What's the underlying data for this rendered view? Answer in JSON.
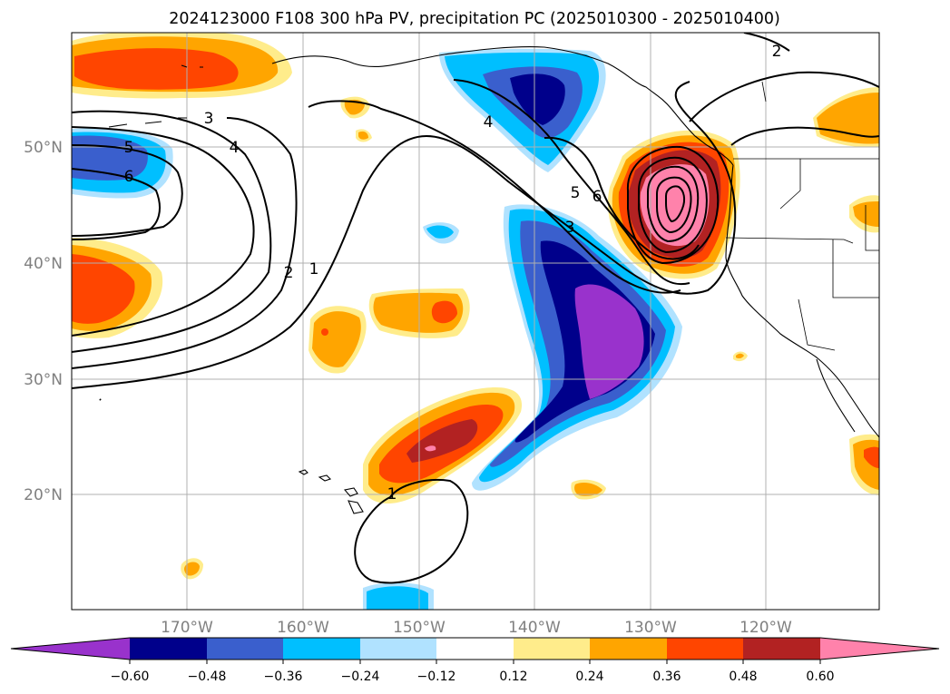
{
  "title": "2024123000 F108 300 hPa PV, precipitation PC (2025010300 - 2025010400)",
  "map": {
    "lon_labels": [
      "170°W",
      "160°W",
      "150°W",
      "140°W",
      "130°W",
      "120°W"
    ],
    "lat_labels": [
      "50°N",
      "40°N",
      "30°N",
      "20°N"
    ]
  },
  "pv_contour_labels": [
    "1",
    "1",
    "2",
    "2",
    "3",
    "3",
    "4",
    "4",
    "5",
    "5",
    "6",
    "6"
  ],
  "colorbar": {
    "ticks": [
      "−0.60",
      "−0.48",
      "−0.36",
      "−0.24",
      "−0.12",
      "0.12",
      "0.24",
      "0.36",
      "0.48",
      "0.60"
    ],
    "colors": [
      "#9932cc",
      "#00008b",
      "#3a5fcd",
      "#00bfff",
      "#b0e2ff",
      "#ffffff",
      "#ffec8b",
      "#ffa500",
      "#ff4500",
      "#b22222",
      "#ff82ab"
    ]
  }
}
